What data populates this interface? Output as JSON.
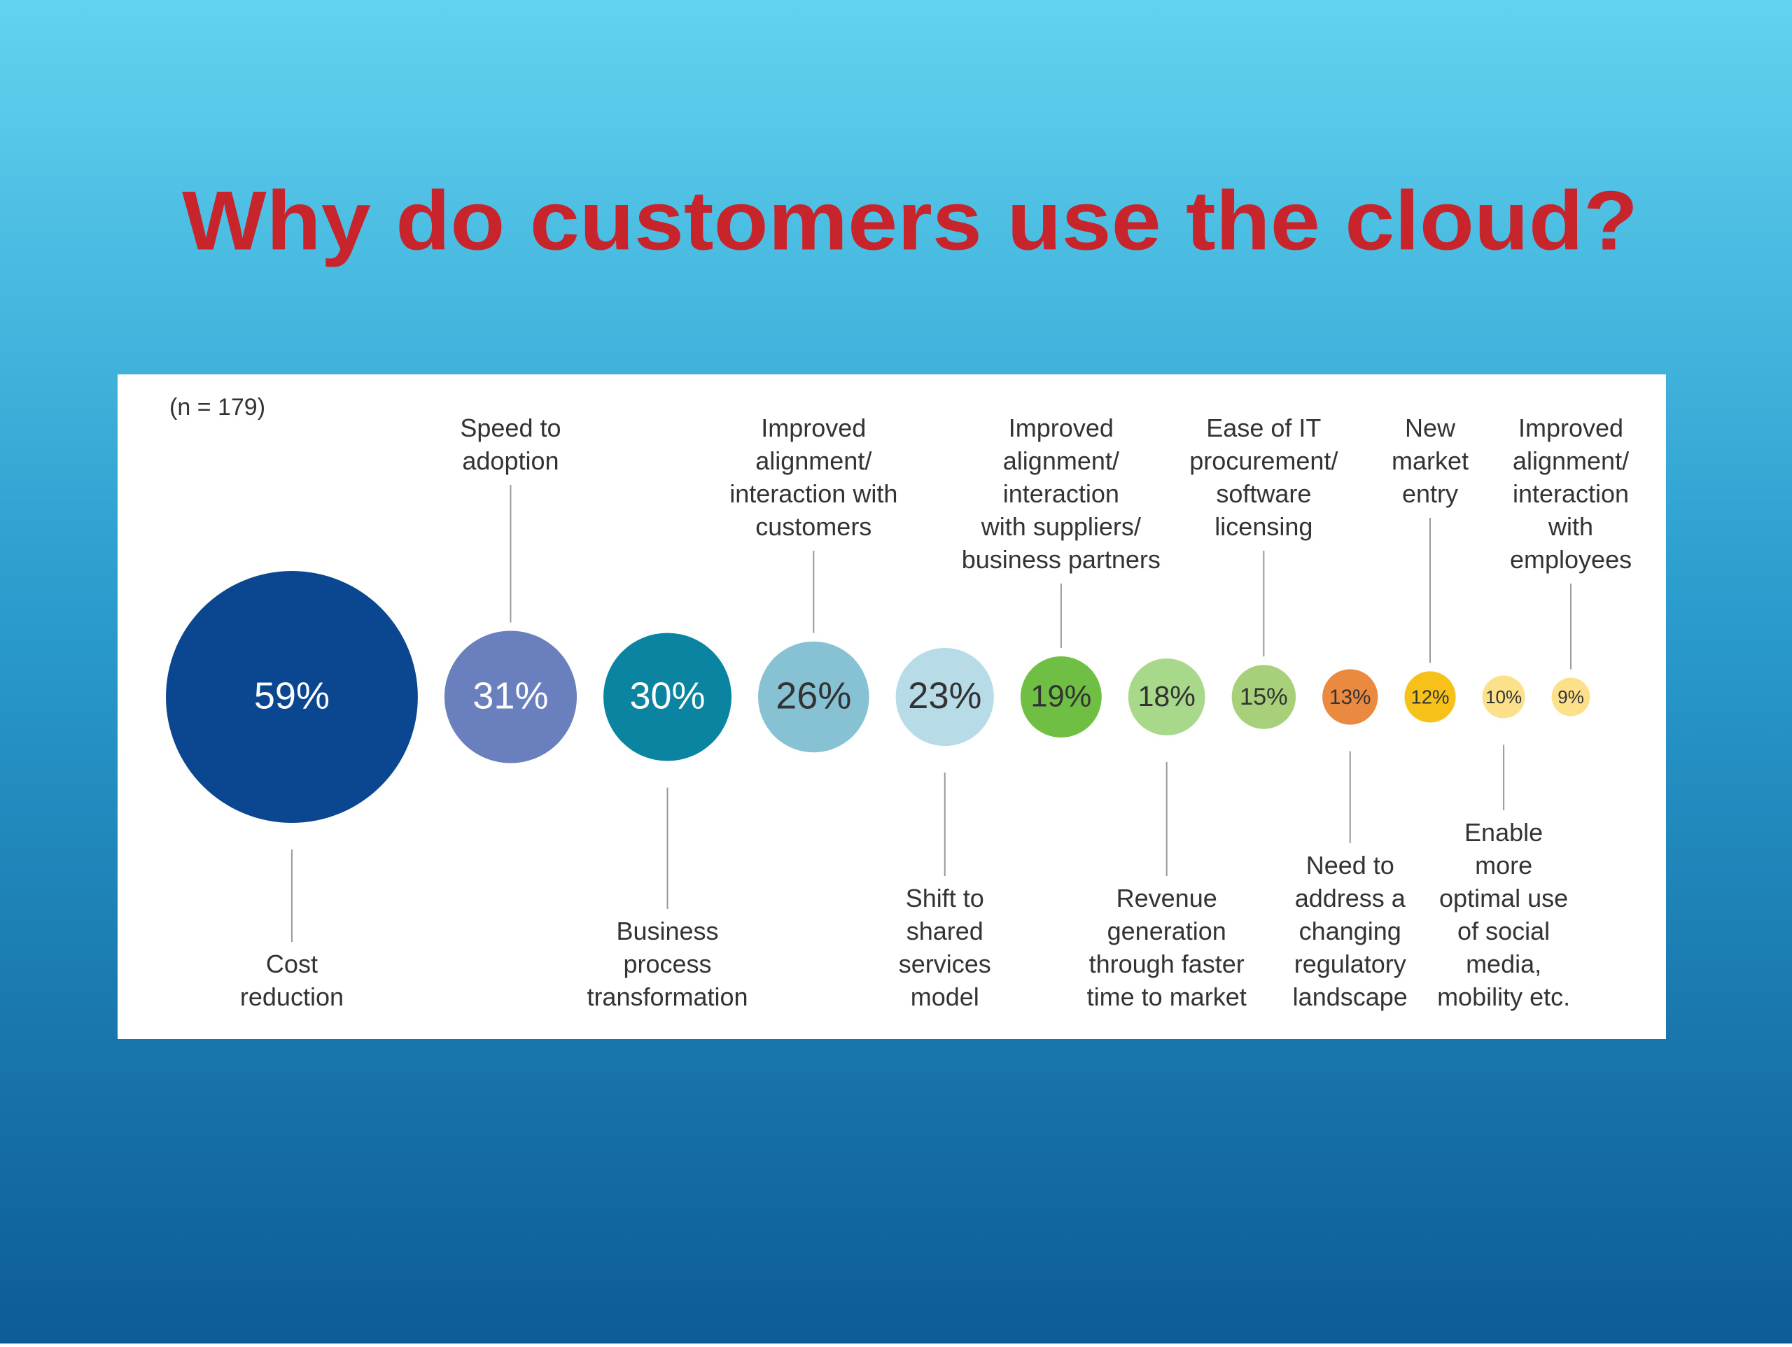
{
  "chart_data": {
    "type": "bubble",
    "title": "Why do customers use the cloud?",
    "annotation": "(n = 179)",
    "categories": [
      "Cost\nreduction",
      "Speed to\nadoption",
      "Business\nprocess\ntransformation",
      "Improved\nalignment/\ninteraction with\ncustomers",
      "Shift to\nshared\nservices\nmodel",
      "Improved\nalignment/\ninteraction\nwith suppliers/\nbusiness partners",
      "Revenue\ngeneration\nthrough faster\ntime to market",
      "Ease of IT\nprocurement/\nsoftware\nlicensing",
      "Need to\naddress a\nchanging\nregulatory\nlandscape",
      "New\nmarket\nentry",
      "Enable\nmore\noptimal use\nof social\nmedia,\nmobility etc.",
      "Improved\nalignment/\ninteraction\nwith\nemployees"
    ],
    "values": [
      59,
      31,
      30,
      26,
      23,
      19,
      18,
      15,
      13,
      12,
      10,
      9
    ],
    "value_labels": [
      "59%",
      "31%",
      "30%",
      "26%",
      "23%",
      "19%",
      "18%",
      "15%",
      "13%",
      "12%",
      "10%",
      "9%"
    ],
    "colors": [
      "#0b4690",
      "#6a7fbd",
      "#0a84a0",
      "#86c1d4",
      "#b7dce8",
      "#6fbf44",
      "#a8d88a",
      "#a8d07a",
      "#e98a40",
      "#f6c21a",
      "#fde08a",
      "#fde08a"
    ]
  }
}
